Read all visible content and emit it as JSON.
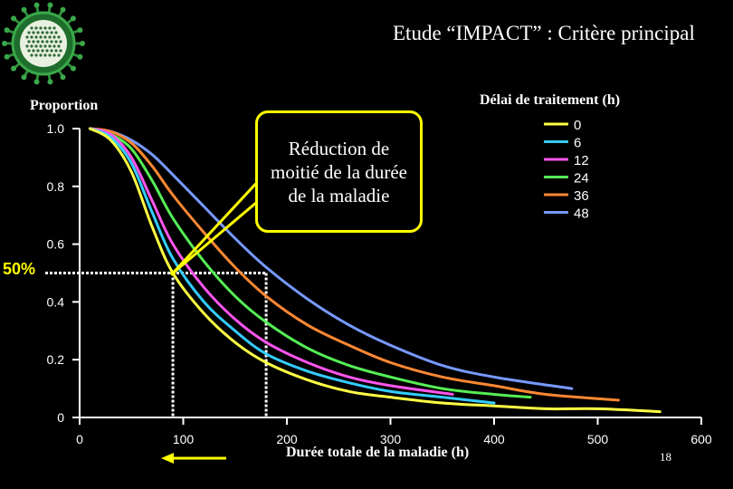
{
  "slide": {
    "title": "Etude “IMPACT” : Critère principal",
    "page_number": "18"
  },
  "callout": {
    "text": "Réduction de moitié de la durée de la maladie"
  },
  "highlight": {
    "label": "50%",
    "color": "#ffff00"
  },
  "chart_data": {
    "type": "line",
    "title": "",
    "xlabel": "Durée totale de la maladie (h)",
    "ylabel": "Proportion",
    "xlim": [
      0,
      600
    ],
    "ylim": [
      0,
      1.0
    ],
    "x_ticks": [
      "0",
      "100",
      "200",
      "300",
      "400",
      "500",
      "600"
    ],
    "y_ticks": [
      "0",
      "0.2",
      "0.4",
      "0.6",
      "0.8",
      "1.0"
    ],
    "legend_title": "Délai de traitement (h)",
    "legend_position": "top-right",
    "grid": false,
    "reference_lines": [
      {
        "y": 0.5,
        "x_from": 0,
        "x_to": 180
      },
      {
        "x": 90,
        "y_from": 0,
        "y_to": 0.5
      },
      {
        "x": 180,
        "y_from": 0,
        "y_to": 0.5
      }
    ],
    "series": [
      {
        "name": "0",
        "color": "#ffff44",
        "x": [
          10,
          30,
          50,
          70,
          90,
          120,
          150,
          180,
          220,
          260,
          300,
          350,
          400,
          450,
          500,
          560
        ],
        "y": [
          1.0,
          0.96,
          0.85,
          0.66,
          0.5,
          0.36,
          0.26,
          0.19,
          0.13,
          0.09,
          0.07,
          0.05,
          0.04,
          0.03,
          0.03,
          0.02
        ]
      },
      {
        "name": "6",
        "color": "#33ccff",
        "x": [
          10,
          30,
          50,
          70,
          90,
          120,
          150,
          180,
          220,
          260,
          300,
          350,
          400
        ],
        "y": [
          1.0,
          0.97,
          0.88,
          0.71,
          0.55,
          0.4,
          0.3,
          0.22,
          0.16,
          0.12,
          0.09,
          0.07,
          0.05
        ]
      },
      {
        "name": "12",
        "color": "#ff55ee",
        "x": [
          10,
          30,
          50,
          70,
          90,
          120,
          150,
          180,
          220,
          260,
          300,
          360
        ],
        "y": [
          1.0,
          0.98,
          0.9,
          0.75,
          0.6,
          0.45,
          0.34,
          0.26,
          0.19,
          0.14,
          0.11,
          0.08
        ]
      },
      {
        "name": "24",
        "color": "#55ee55",
        "x": [
          10,
          30,
          50,
          70,
          90,
          120,
          150,
          180,
          220,
          260,
          300,
          350,
          400,
          435
        ],
        "y": [
          1.0,
          0.98,
          0.93,
          0.82,
          0.69,
          0.54,
          0.42,
          0.33,
          0.24,
          0.18,
          0.14,
          0.1,
          0.08,
          0.07
        ]
      },
      {
        "name": "36",
        "color": "#ff8833",
        "x": [
          10,
          30,
          50,
          70,
          90,
          120,
          150,
          180,
          220,
          260,
          300,
          350,
          400,
          450,
          520
        ],
        "y": [
          1.0,
          0.99,
          0.95,
          0.87,
          0.77,
          0.64,
          0.52,
          0.42,
          0.32,
          0.25,
          0.19,
          0.14,
          0.11,
          0.08,
          0.06
        ]
      },
      {
        "name": "48",
        "color": "#7799ff",
        "x": [
          10,
          30,
          50,
          70,
          90,
          120,
          150,
          180,
          220,
          260,
          300,
          350,
          400,
          475
        ],
        "y": [
          1.0,
          0.99,
          0.96,
          0.91,
          0.84,
          0.73,
          0.62,
          0.52,
          0.41,
          0.32,
          0.25,
          0.18,
          0.14,
          0.1
        ]
      }
    ]
  }
}
